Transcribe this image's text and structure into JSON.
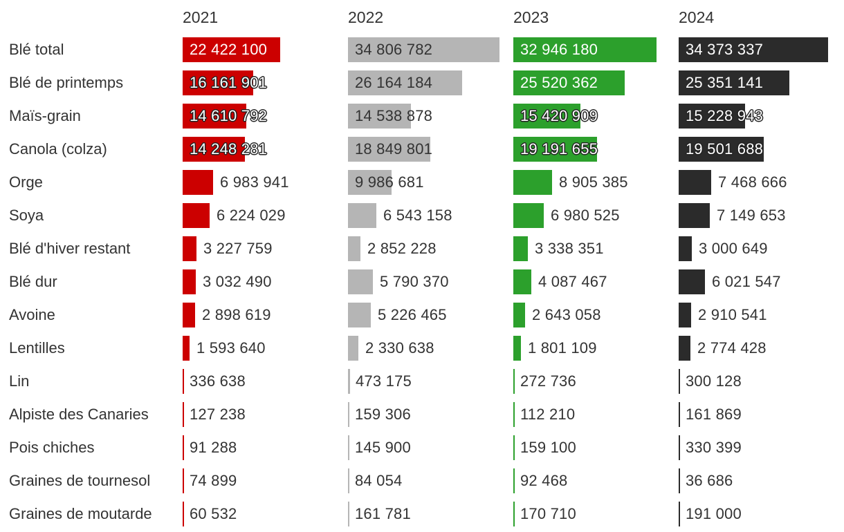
{
  "chart_data": {
    "type": "bar",
    "orientation": "horizontal",
    "layout": "small-multiples",
    "categories": [
      "Blé total",
      "Blé de printemps",
      "Maïs-grain",
      "Canola (colza)",
      "Orge",
      "Soya",
      "Blé d'hiver restant",
      "Blé dur",
      "Avoine",
      "Lentilles",
      "Lin",
      "Alpiste des Canaries",
      "Pois chiches",
      "Graines de tournesol",
      "Graines de moutarde"
    ],
    "series": [
      {
        "name": "2021",
        "color": "#cc0000",
        "values": [
          22422100,
          16161901,
          14610792,
          14248281,
          6983941,
          6224029,
          3227759,
          3032490,
          2898619,
          1593640,
          336638,
          127238,
          91288,
          74899,
          60532
        ],
        "labels": [
          "22 422 100",
          "16 161 901",
          "14 610 792",
          "14 248 281",
          "6 983 941",
          "6 224 029",
          "3 227 759",
          "3 032 490",
          "2 898 619",
          "1 593 640",
          "336 638",
          "127 238",
          "91 288",
          "74 899",
          "60 532"
        ]
      },
      {
        "name": "2022",
        "color": "#b5b5b5",
        "values": [
          34806782,
          26164184,
          14538878,
          18849801,
          9986681,
          6543158,
          2852228,
          5790370,
          5226465,
          2330638,
          473175,
          159306,
          145900,
          84054,
          161781
        ],
        "labels": [
          "34 806 782",
          "26 164 184",
          "14 538 878",
          "18 849 801",
          "9 986 681",
          "6 543 158",
          "2 852 228",
          "5 790 370",
          "5 226 465",
          "2 330 638",
          "473 175",
          "159 306",
          "145 900",
          "84 054",
          "161 781"
        ]
      },
      {
        "name": "2023",
        "color": "#2ca02c",
        "values": [
          32946180,
          25520362,
          15420909,
          19191655,
          8905385,
          6980525,
          3338351,
          4087467,
          2643058,
          1801109,
          272736,
          112210,
          159100,
          92468,
          170710
        ],
        "labels": [
          "32 946 180",
          "25 520 362",
          "15 420 909",
          "19 191 655",
          "8 905 385",
          "6 980 525",
          "3 338 351",
          "4 087 467",
          "2 643 058",
          "1 801 109",
          "272 736",
          "112 210",
          "159 100",
          "92 468",
          "170 710"
        ]
      },
      {
        "name": "2024",
        "color": "#2b2b2b",
        "values": [
          34373337,
          25351141,
          15228943,
          19501688,
          7468666,
          7149653,
          3000649,
          6021547,
          2910541,
          2774428,
          300128,
          161869,
          330399,
          36686,
          191000
        ],
        "labels": [
          "34 373 337",
          "25 351 141",
          "15 228 943",
          "19 501 688",
          "7 468 666",
          "7 149 653",
          "3 000 649",
          "6 021 547",
          "2 910 541",
          "2 774 428",
          "300 128",
          "161 869",
          "330 399",
          "36 686",
          "191 000"
        ]
      }
    ],
    "title": "",
    "xlabel": "",
    "ylabel": "",
    "grid": false,
    "legend": "none"
  }
}
